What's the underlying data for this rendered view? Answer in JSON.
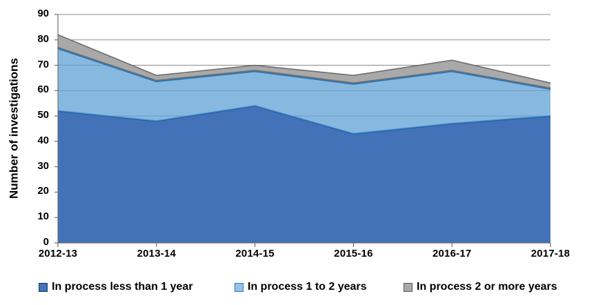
{
  "chart_data": {
    "type": "area",
    "stacked": true,
    "title": "",
    "ylabel": "Number of investigations",
    "xlabel": "",
    "categories": [
      "2012-13",
      "2013-14",
      "2014-15",
      "2015-16",
      "2016-17",
      "2017-18"
    ],
    "series": [
      {
        "name": "In process less than 1 year",
        "values": [
          52,
          48,
          54,
          43,
          47,
          50
        ],
        "stacked_top": [
          52,
          48,
          54,
          43,
          47,
          50
        ],
        "area_fill": "#4372b8",
        "area_opacity": 1,
        "line_color": "#2263ac",
        "line_width": 2.5,
        "swatch_fill": "#4372b8",
        "swatch_border": "#17375e"
      },
      {
        "name": "In process 1 to 2 years",
        "values": [
          25,
          16,
          14,
          20,
          21,
          11
        ],
        "stacked_top": [
          77,
          64,
          68,
          63,
          68,
          61
        ],
        "area_fill": "#5fa2d6",
        "area_opacity": 0.75,
        "line_color": "#2e75b6",
        "line_width": 2,
        "swatch_fill": "#95c3e7",
        "swatch_border": "#2e75b6"
      },
      {
        "name": "In process 2 or more years",
        "values": [
          5,
          2,
          2,
          3,
          4,
          2
        ],
        "stacked_top": [
          82,
          66,
          70,
          66,
          72,
          63
        ],
        "area_fill": "#a9a9a9",
        "area_opacity": 1,
        "line_color": "#6d6d6d",
        "line_width": 1.6,
        "swatch_fill": "#a9a9a9",
        "swatch_border": "#595959"
      }
    ],
    "ylim": [
      0,
      90
    ],
    "ytick_step": 10,
    "yticks": [
      "0",
      "10",
      "20",
      "30",
      "40",
      "50",
      "60",
      "70",
      "80",
      "90"
    ],
    "grid": true,
    "gridline_color": "#8a8a8a",
    "axis_color": "#6e6e6e",
    "legend_position": "bottom"
  }
}
